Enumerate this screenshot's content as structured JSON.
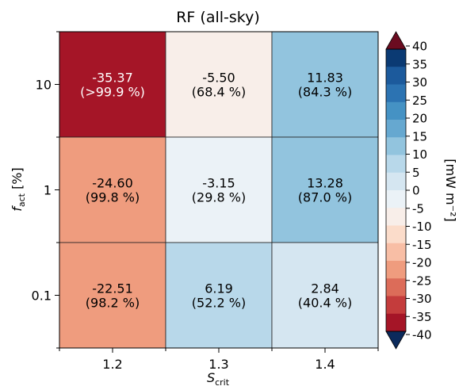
{
  "chart_data": {
    "type": "heatmap",
    "title": "RF (all-sky)",
    "xlabel_main": "S",
    "xlabel_sub": "crit",
    "ylabel_main": "f",
    "ylabel_sub": "act",
    "ylabel_unit": " [%]",
    "x_categories": [
      "1.2",
      "1.3",
      "1.4"
    ],
    "y_categories": [
      "10",
      "1",
      "0.1"
    ],
    "cells": [
      [
        {
          "value": -35.37,
          "value_label": "-35.37",
          "pct_label": "(>99.9 %)"
        },
        {
          "value": -5.5,
          "value_label": "-5.50",
          "pct_label": "(68.4 %)"
        },
        {
          "value": 11.83,
          "value_label": "11.83",
          "pct_label": "(84.3 %)"
        }
      ],
      [
        {
          "value": -24.6,
          "value_label": "-24.60",
          "pct_label": "(99.8 %)"
        },
        {
          "value": -3.15,
          "value_label": "-3.15",
          "pct_label": "(29.8 %)"
        },
        {
          "value": 13.28,
          "value_label": "13.28",
          "pct_label": "(87.0 %)"
        }
      ],
      [
        {
          "value": -22.51,
          "value_label": "-22.51",
          "pct_label": "(98.2 %)"
        },
        {
          "value": 6.19,
          "value_label": "6.19",
          "pct_label": "(52.2 %)"
        },
        {
          "value": 2.84,
          "value_label": "2.84",
          "pct_label": "(40.4 %)"
        }
      ]
    ],
    "colorbar": {
      "label": "[mW m⁻²]",
      "range": [
        -40,
        40
      ],
      "step": 5,
      "ticks": [
        "40",
        "35",
        "30",
        "25",
        "20",
        "15",
        "10",
        "5",
        "0",
        "-5",
        "-10",
        "-15",
        "-20",
        "-25",
        "-30",
        "-35",
        "-40"
      ],
      "colors": [
        "#0b3a73",
        "#1c5a9c",
        "#2c73b2",
        "#4592c4",
        "#66a8d0",
        "#92c4de",
        "#b8d8ea",
        "#d5e6f1",
        "#ebf2f7",
        "#f8eee9",
        "#fbdcca",
        "#f8bea5",
        "#ef9c7e",
        "#dc6c59",
        "#c43c3c",
        "#a51527",
        "#6b0c20"
      ],
      "extend_low_color": "#0b2a5c",
      "extend_high_color": "#6b0c20"
    }
  }
}
